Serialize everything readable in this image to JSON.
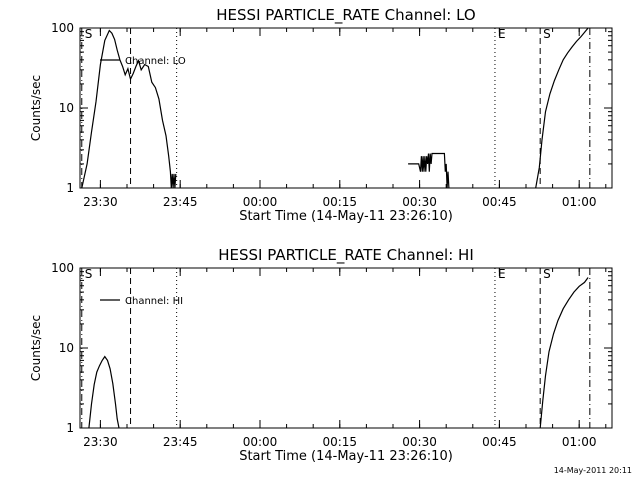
{
  "timestamp": "14-May-2011 20:11",
  "chart_data": [
    {
      "type": "line",
      "title": "HESSI PARTICLE_RATE Channel: LO",
      "xlabel": "Start Time (14-May-11 23:26:10)",
      "ylabel": "Counts/sec",
      "yscale": "log",
      "ylim": [
        1,
        100
      ],
      "xlim": [
        "23:26:10",
        "01:06:10"
      ],
      "xticks": [
        "23:30",
        "23:45",
        "00:00",
        "00:15",
        "00:30",
        "00:45",
        "01:00"
      ],
      "yticks": [
        "1",
        "10",
        "100"
      ],
      "legend": {
        "label": "Channel: LO",
        "position": "top-left"
      },
      "markers": [
        {
          "time": "23:26:30",
          "label": "S",
          "style": "dashdot"
        },
        {
          "time": "23:35:40",
          "label": "",
          "style": "dashed"
        },
        {
          "time": "23:44:20",
          "label": "",
          "style": "dotted"
        },
        {
          "time": "00:44:10",
          "label": "E",
          "style": "dotted"
        },
        {
          "time": "00:52:40",
          "label": "S",
          "style": "dashed"
        },
        {
          "time": "01:02:00",
          "label": "",
          "style": "dashdot"
        }
      ],
      "series": [
        {
          "name": "Channel: LO",
          "segments": [
            {
              "x": [
                "23:26:30",
                "23:27:30",
                "23:28:20",
                "23:29:10",
                "23:30:00",
                "23:30:50",
                "23:31:40",
                "23:32:10",
                "23:32:40",
                "23:33:10",
                "23:33:40",
                "23:34:10",
                "23:34:40",
                "23:35:10",
                "23:35:40",
                "23:36:10",
                "23:36:40",
                "23:37:10",
                "23:37:40",
                "23:38:20",
                "23:39:00",
                "23:39:40",
                "23:40:20",
                "23:41:00",
                "23:41:40",
                "23:42:20",
                "23:42:50",
                "23:43:10",
                "23:43:20",
                "23:43:30",
                "23:43:40",
                "23:43:50",
                "23:44:00",
                "23:44:10"
              ],
              "y": [
                1,
                2,
                5,
                12,
                35,
                70,
                93,
                86,
                72,
                53,
                40,
                33,
                26,
                31,
                23,
                27,
                33,
                39,
                30,
                35,
                33,
                21,
                18,
                13,
                7,
                4.5,
                2.5,
                1.6,
                1,
                1.5,
                1,
                1.5,
                1,
                1.5
              ]
            },
            {
              "x": [
                "00:27:50",
                "00:29:50",
                "00:30:10",
                "00:30:20",
                "00:30:30",
                "00:30:40",
                "00:30:50",
                "00:31:00",
                "00:31:10",
                "00:31:20",
                "00:31:30",
                "00:31:40",
                "00:31:50",
                "00:32:00",
                "00:32:10",
                "00:32:20",
                "00:32:30",
                "00:32:40",
                "00:33:50",
                "00:34:40",
                "00:34:50",
                "00:35:00",
                "00:35:10",
                "00:35:20",
                "00:35:30"
              ],
              "y": [
                2,
                2,
                1.6,
                2.5,
                1.6,
                2.5,
                1.6,
                2.5,
                1.6,
                2.5,
                2,
                2.7,
                1.6,
                2.7,
                2,
                2.7,
                2.7,
                2.7,
                2.7,
                2.7,
                1.6,
                2,
                1,
                1.6,
                1
              ]
            },
            {
              "x": [
                "00:51:50",
                "00:52:30",
                "00:53:00",
                "00:53:40",
                "00:54:30",
                "00:55:20",
                "00:56:10",
                "00:57:00",
                "00:57:50",
                "00:58:40",
                "00:59:30",
                "01:00:20",
                "01:01:00",
                "01:01:40"
              ],
              "y": [
                1,
                1.8,
                4,
                9,
                15,
                22,
                30,
                40,
                49,
                58,
                68,
                78,
                88,
                100
              ]
            }
          ]
        }
      ]
    },
    {
      "type": "line",
      "title": "HESSI PARTICLE_RATE Channel: HI",
      "xlabel": "Start Time (14-May-11 23:26:10)",
      "ylabel": "Counts/sec",
      "yscale": "log",
      "ylim": [
        1,
        100
      ],
      "xlim": [
        "23:26:10",
        "01:06:10"
      ],
      "xticks": [
        "23:30",
        "23:45",
        "00:00",
        "00:15",
        "00:30",
        "00:45",
        "01:00"
      ],
      "yticks": [
        "1",
        "10",
        "100"
      ],
      "legend": {
        "label": "Channel: HI",
        "position": "top-left"
      },
      "markers": [
        {
          "time": "23:26:30",
          "label": "S",
          "style": "dashdot"
        },
        {
          "time": "23:35:40",
          "label": "",
          "style": "dashed"
        },
        {
          "time": "23:44:20",
          "label": "",
          "style": "dotted"
        },
        {
          "time": "00:44:10",
          "label": "E",
          "style": "dotted"
        },
        {
          "time": "00:52:40",
          "label": "S",
          "style": "dashed"
        },
        {
          "time": "01:02:00",
          "label": "",
          "style": "dashdot"
        }
      ],
      "series": [
        {
          "name": "Channel: HI",
          "segments": [
            {
              "x": [
                "23:27:50",
                "23:28:20",
                "23:28:50",
                "23:29:20",
                "23:29:50",
                "23:30:20",
                "23:30:50",
                "23:31:20",
                "23:31:50",
                "23:32:20",
                "23:32:50",
                "23:33:10",
                "23:33:30"
              ],
              "y": [
                1,
                2,
                3.5,
                5,
                6,
                7,
                7.8,
                7,
                5.5,
                3.6,
                2,
                1.3,
                1
              ]
            },
            {
              "x": [
                "00:52:40",
                "00:53:10",
                "00:53:40",
                "00:54:20",
                "00:55:10",
                "00:56:00",
                "00:57:00",
                "00:58:00",
                "00:59:00",
                "01:00:00",
                "01:01:00",
                "01:01:40"
              ],
              "y": [
                1,
                2.2,
                4.5,
                9,
                15,
                22,
                31,
                40,
                50,
                59,
                66,
                76
              ]
            }
          ]
        }
      ]
    }
  ]
}
